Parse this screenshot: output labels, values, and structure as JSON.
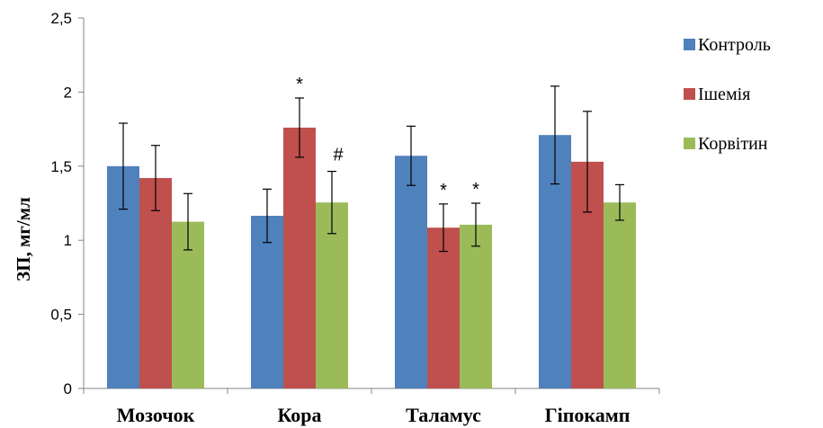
{
  "chart_data": {
    "type": "bar",
    "title": "",
    "xlabel": "",
    "ylabel": "ЗП, мг/мл",
    "ylim": [
      0,
      2.5
    ],
    "yticks": [
      "0",
      "0,5",
      "1",
      "1,5",
      "2",
      "2,5"
    ],
    "categories": [
      "Мозочок",
      "Кора",
      "Таламус",
      "Гіпокамп"
    ],
    "series": [
      {
        "name": "Контроль",
        "color": "#4F81BD",
        "values": [
          1.5,
          1.165,
          1.57,
          1.71
        ],
        "errors": [
          0.29,
          0.18,
          0.2,
          0.33
        ],
        "annotations": [
          "",
          "",
          "",
          ""
        ]
      },
      {
        "name": "Ішемія",
        "color": "#C0504D",
        "values": [
          1.42,
          1.76,
          1.085,
          1.53
        ],
        "errors": [
          0.22,
          0.2,
          0.16,
          0.34
        ],
        "annotations": [
          "",
          "*",
          "*",
          ""
        ]
      },
      {
        "name": "Корвітин",
        "color": "#9BBB59",
        "values": [
          1.125,
          1.255,
          1.105,
          1.255
        ],
        "errors": [
          0.19,
          0.21,
          0.145,
          0.12
        ],
        "annotations": [
          "",
          "#",
          "*",
          ""
        ]
      }
    ],
    "grid": false,
    "legend_position": "right"
  }
}
